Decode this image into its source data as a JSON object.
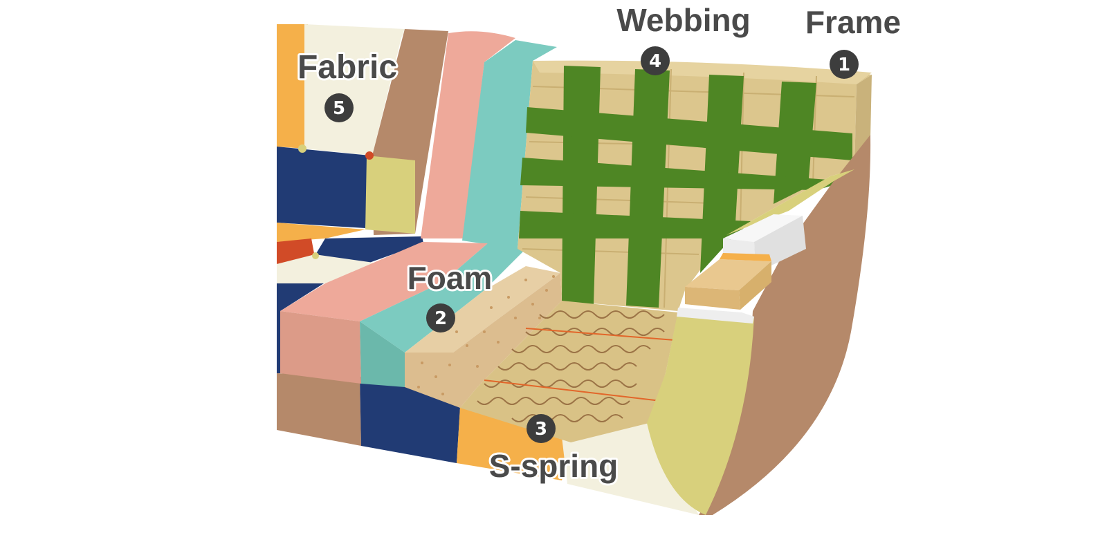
{
  "labels": {
    "fabric": {
      "text": "Fabric",
      "number": "5"
    },
    "foam": {
      "text": "Foam",
      "number": "2"
    },
    "spring": {
      "text": "S-spring",
      "number": "3"
    },
    "webbing": {
      "text": "Webbing",
      "number": "4"
    },
    "frame": {
      "text": "Frame",
      "number": "1"
    }
  },
  "colors": {
    "fabric_orange": "#f5b04a",
    "fabric_cream": "#f3f0de",
    "fabric_brown": "#b5896a",
    "fabric_navy": "#213b74",
    "fabric_olive": "#d8d07c",
    "fabric_red": "#d14b27",
    "foam_pink": "#eea99a",
    "foam_teal": "#7ccbc0",
    "foam_speckle": "#e7cfa5",
    "webbing_green": "#4e8624",
    "frame_tan": "#dcc68d",
    "spring_line": "#9b7346",
    "spring_wire": "#e2662a",
    "arm_pad": "#eeeeee",
    "label_text": "#4a4a4a",
    "badge_fill": "#3d3d3d"
  }
}
